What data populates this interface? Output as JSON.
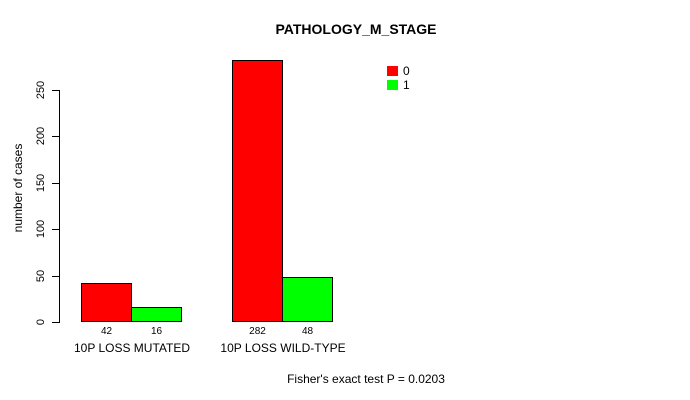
{
  "title": "PATHOLOGY_M_STAGE",
  "footer": "Fisher's exact test P = 0.0203",
  "legend": {
    "items": [
      {
        "label": "0",
        "color": "#FF0000"
      },
      {
        "label": "1",
        "color": "#00FF00"
      }
    ]
  },
  "chart_data": {
    "type": "bar",
    "title": "PATHOLOGY_M_STAGE",
    "xlabel": "",
    "ylabel": "number of cases",
    "categories": [
      "10P LOSS MUTATED",
      "10P LOSS WILD-TYPE"
    ],
    "series": [
      {
        "name": "0",
        "color": "#FF0000",
        "values": [
          42,
          282
        ]
      },
      {
        "name": "1",
        "color": "#00FF00",
        "values": [
          16,
          48
        ]
      }
    ],
    "bar_value_labels": [
      [
        "42",
        "282"
      ],
      [
        "16",
        "48"
      ]
    ],
    "yticks": [
      0,
      50,
      100,
      150,
      200,
      250
    ],
    "ylim": [
      0,
      290
    ],
    "grid": false,
    "legend_position": "top-right",
    "annotation": "Fisher's exact test P = 0.0203"
  }
}
